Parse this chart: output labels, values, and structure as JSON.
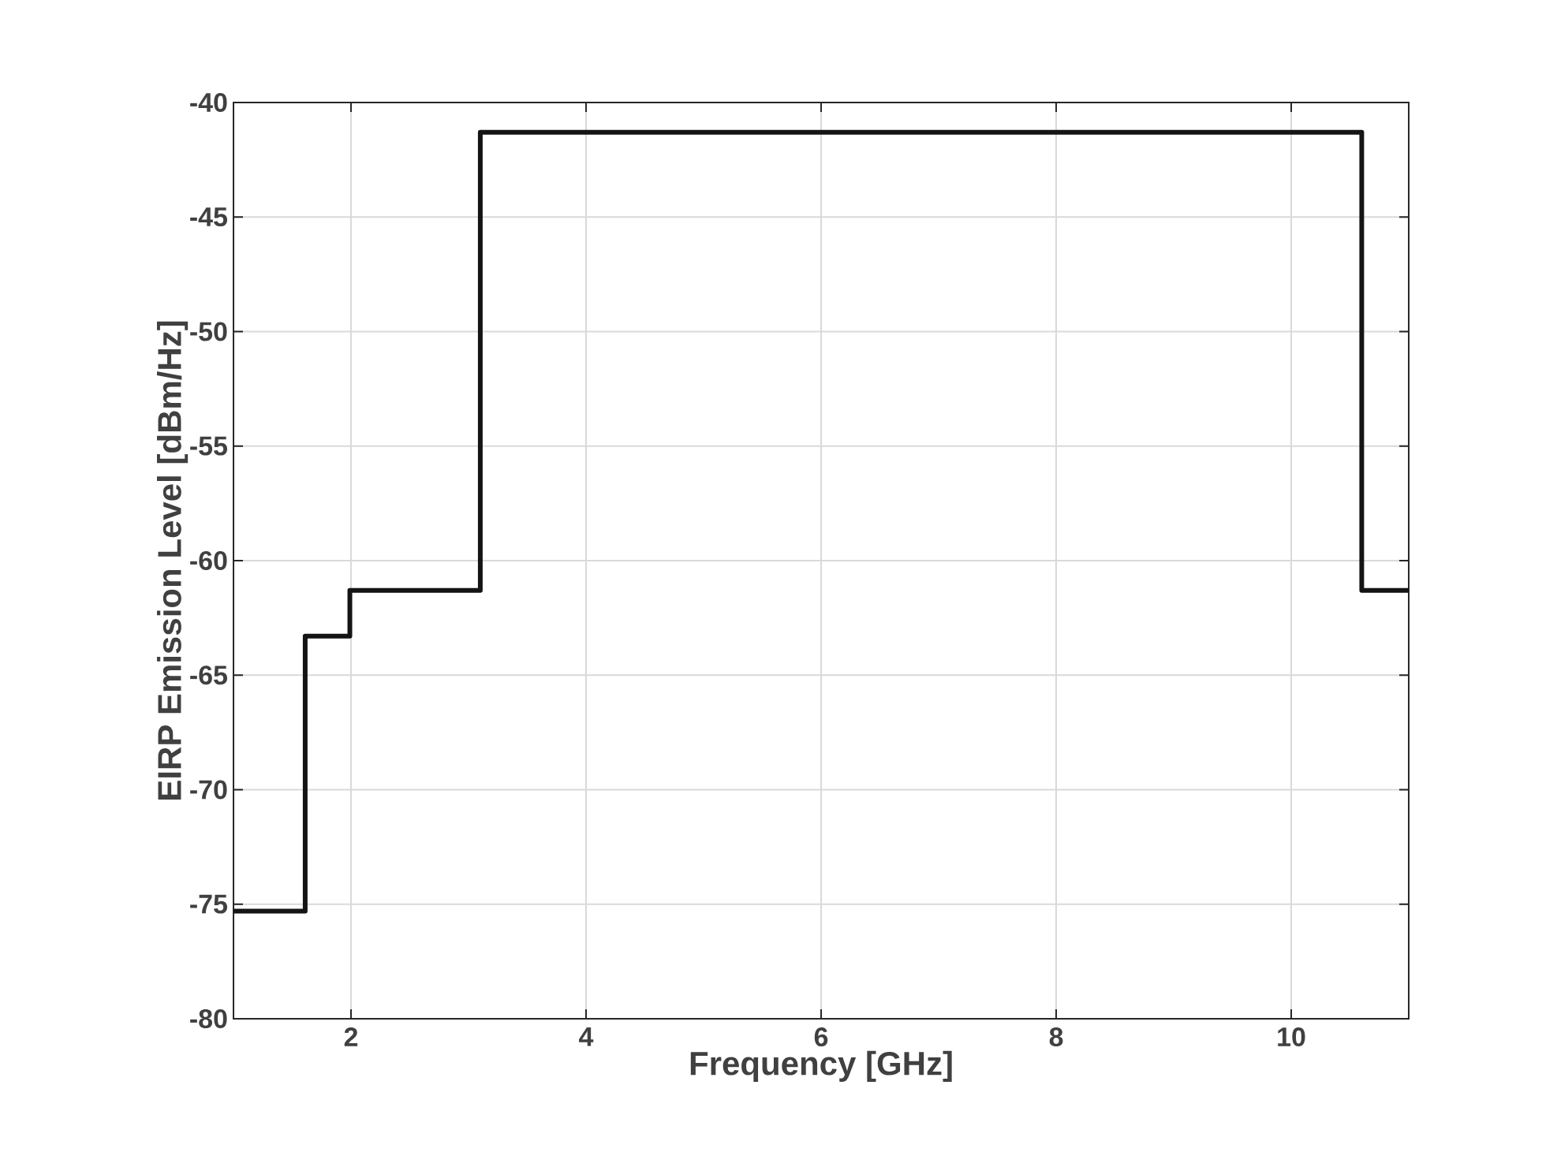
{
  "chart_data": {
    "type": "step",
    "xlabel": "Frequency [GHz]",
    "ylabel": "EIRP Emission Level [dBm/Hz]",
    "x": [
      1,
      1.61,
      1.99,
      3.1,
      10.6,
      11
    ],
    "values": [
      -75.3,
      -63.3,
      -61.3,
      -41.3,
      -61.3,
      -61.3
    ],
    "color": "#141414",
    "xlim": [
      1,
      11
    ],
    "ylim": [
      -80,
      -40
    ],
    "xticks": [
      2,
      4,
      6,
      8,
      10
    ],
    "yticks": [
      -80,
      -75,
      -70,
      -65,
      -60,
      -55,
      -50,
      -45,
      -40
    ],
    "grid": true,
    "line_style": "solid",
    "marker": "none"
  }
}
